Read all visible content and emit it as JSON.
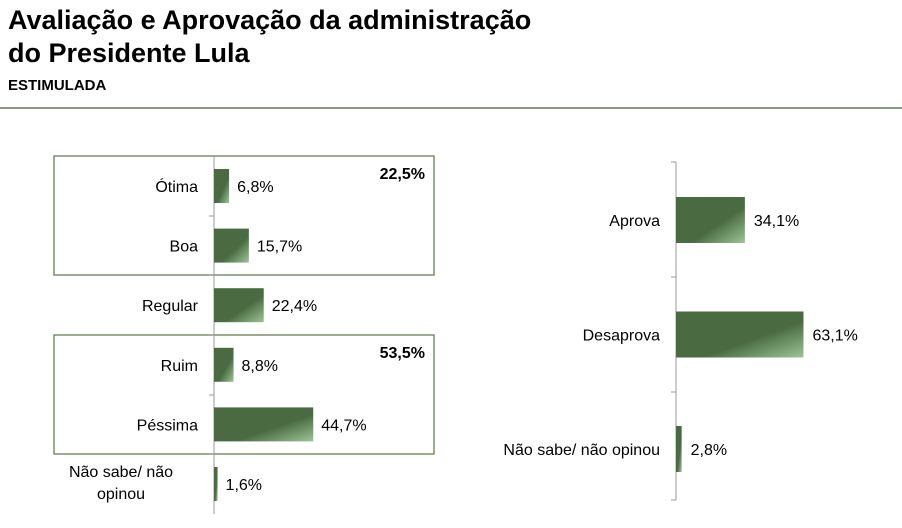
{
  "header": {
    "title_line1": "Avaliação e Aprovação da administração",
    "title_line2": "do Presidente Lula",
    "subtitle": "ESTIMULADA"
  },
  "colors": {
    "bar_dark": "#4a6b42",
    "bar_light": "#9cc596",
    "box": "#7a8f6a"
  },
  "chart_data": [
    {
      "type": "bar",
      "orientation": "horizontal",
      "title": "Avaliação",
      "categories": [
        "Ótima",
        "Boa",
        "Regular",
        "Ruim",
        "Péssima",
        "Não sabe/ não opinou"
      ],
      "values": [
        6.8,
        15.7,
        22.4,
        8.8,
        44.7,
        1.6
      ],
      "labels": [
        "6,8%",
        "15,7%",
        "22,4%",
        "8,8%",
        "44,7%",
        "1,6%"
      ],
      "groups": [
        {
          "members": [
            "Ótima",
            "Boa"
          ],
          "total_label": "22,5%"
        },
        {
          "members": [
            "Ruim",
            "Péssima"
          ],
          "total_label": "53,5%"
        }
      ]
    },
    {
      "type": "bar",
      "orientation": "horizontal",
      "title": "Aprovação",
      "categories": [
        "Aprova",
        "Desaprova",
        "Não sabe/ não opinou"
      ],
      "values": [
        34.1,
        63.1,
        2.8
      ],
      "labels": [
        "34,1%",
        "63,1%",
        "2,8%"
      ]
    }
  ]
}
